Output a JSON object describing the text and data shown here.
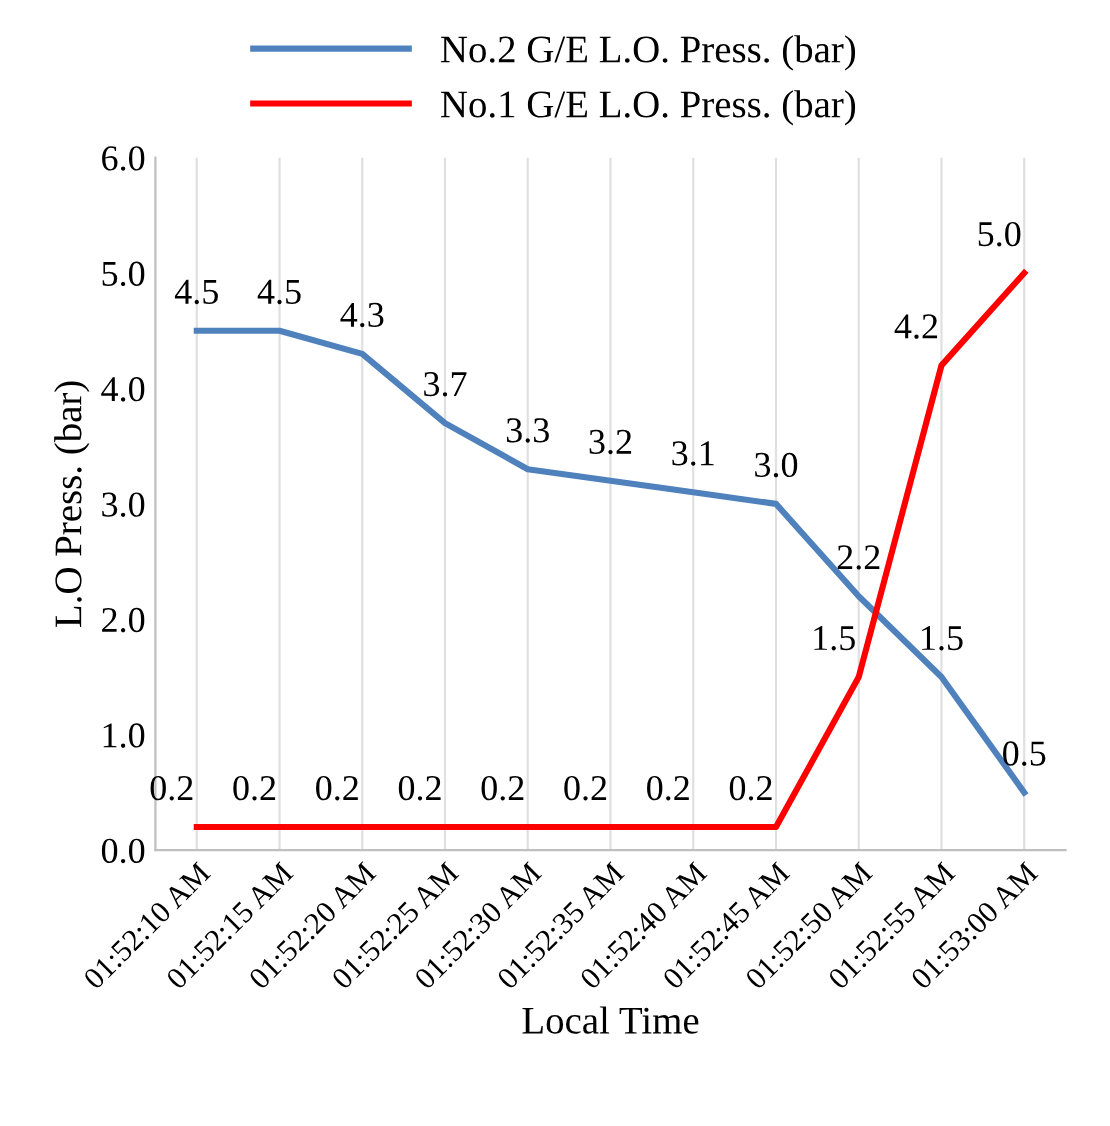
{
  "chart_data": {
    "type": "line",
    "xlabel": "Local Time",
    "ylabel": "L.O Press. (bar)",
    "categories": [
      "01:52:10 AM",
      "01:52:15 AM",
      "01:52:20 AM",
      "01:52:25 AM",
      "01:52:30 AM",
      "01:52:35 AM",
      "01:52:40 AM",
      "01:52:45 AM",
      "01:52:50 AM",
      "01:52:55 AM",
      "01:53:00 AM"
    ],
    "series": [
      {
        "name": "No.2 G/E L.O. Press. (bar)",
        "color": "#4f81bd",
        "values": [
          4.5,
          4.5,
          4.3,
          3.7,
          3.3,
          3.2,
          3.1,
          3.0,
          2.2,
          1.5,
          0.5
        ],
        "value_labels": [
          "4.5",
          "4.5",
          "4.3",
          "3.7",
          "3.3",
          "3.2",
          "3.1",
          "3.0",
          "2.2",
          "1.5",
          "0.5"
        ]
      },
      {
        "name": "No.1 G/E L.O. Press. (bar)",
        "color": "#ff0000",
        "values": [
          0.2,
          0.2,
          0.2,
          0.2,
          0.2,
          0.2,
          0.2,
          0.2,
          1.5,
          4.2,
          5.0
        ],
        "value_labels": [
          "0.2",
          "0.2",
          "0.2",
          "0.2",
          "0.2",
          "0.2",
          "0.2",
          "0.2",
          "1.5",
          "4.2",
          "5.0"
        ]
      }
    ],
    "ylim": [
      0,
      6
    ],
    "yticks": [
      {
        "value": 0,
        "label": "0.0"
      },
      {
        "value": 1,
        "label": "1.0"
      },
      {
        "value": 2,
        "label": "2.0"
      },
      {
        "value": 3,
        "label": "3.0"
      },
      {
        "value": 4,
        "label": "4.0"
      },
      {
        "value": 5,
        "label": "5.0"
      },
      {
        "value": 6,
        "label": "6.0"
      }
    ],
    "grid": "x",
    "legend": "top",
    "marker": "none",
    "line_style": "solid"
  }
}
